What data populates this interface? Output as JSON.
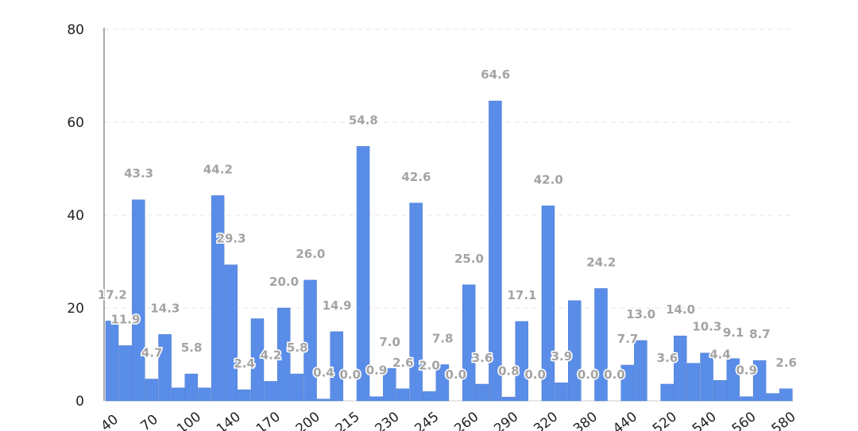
{
  "chart_data": {
    "type": "bar",
    "title": "",
    "xlabel": "",
    "ylabel": "",
    "ylim": [
      0,
      80
    ],
    "yticks": [
      0,
      20,
      40,
      60,
      80
    ],
    "grid": true,
    "bar_color": "#5a8de8",
    "label_color": "#a3a3a3",
    "values": [
      17.2,
      11.9,
      43.3,
      4.7,
      14.3,
      2.8,
      5.8,
      2.8,
      44.2,
      29.3,
      2.4,
      17.7,
      4.2,
      20.0,
      5.8,
      26.0,
      0.4,
      14.9,
      0.0,
      54.8,
      0.9,
      7.0,
      2.6,
      42.6,
      2.0,
      7.8,
      0.0,
      25.0,
      3.6,
      64.6,
      0.8,
      17.1,
      0.0,
      42.0,
      3.9,
      21.6,
      0.0,
      24.2,
      0.0,
      7.7,
      13.0,
      0.0,
      3.6,
      14.0,
      8.1,
      10.3,
      4.4,
      9.1,
      0.9,
      8.7,
      1.6,
      2.6
    ],
    "data_labels": [
      "17.2",
      "11.9",
      "43.3",
      "4.7",
      "14.3",
      "",
      "5.8",
      "",
      "44.2",
      "29.3",
      "2.4",
      "",
      "4.2",
      "20.0",
      "5.8",
      "26.0",
      "0.4",
      "14.9",
      "0.0",
      "54.8",
      "0.9",
      "7.0",
      "2.6",
      "42.6",
      "2.0",
      "7.8",
      "0.0",
      "25.0",
      "3.6",
      "64.6",
      "0.8",
      "17.1",
      "0.0",
      "42.0",
      "3.9",
      "",
      "0.0",
      "24.2",
      "0.0",
      "7.7",
      "13.0",
      "",
      "3.6",
      "14.0",
      "",
      "10.3",
      "4.4",
      "9.1",
      "0.9",
      "8.7",
      "",
      "2.6"
    ],
    "x_tick_labels": [
      {
        "bar": 0,
        "text": "40"
      },
      {
        "bar": 3,
        "text": "70"
      },
      {
        "bar": 6,
        "text": "100"
      },
      {
        "bar": 9,
        "text": "140"
      },
      {
        "bar": 12,
        "text": "170"
      },
      {
        "bar": 15,
        "text": "200"
      },
      {
        "bar": 18,
        "text": "215"
      },
      {
        "bar": 21,
        "text": "230"
      },
      {
        "bar": 24,
        "text": "245"
      },
      {
        "bar": 27,
        "text": "260"
      },
      {
        "bar": 30,
        "text": "290"
      },
      {
        "bar": 33,
        "text": "320"
      },
      {
        "bar": 36,
        "text": "380"
      },
      {
        "bar": 39,
        "text": "440"
      },
      {
        "bar": 42,
        "text": "520"
      },
      {
        "bar": 45,
        "text": "540"
      },
      {
        "bar": 48,
        "text": "560"
      },
      {
        "bar": 51,
        "text": "580"
      }
    ]
  }
}
